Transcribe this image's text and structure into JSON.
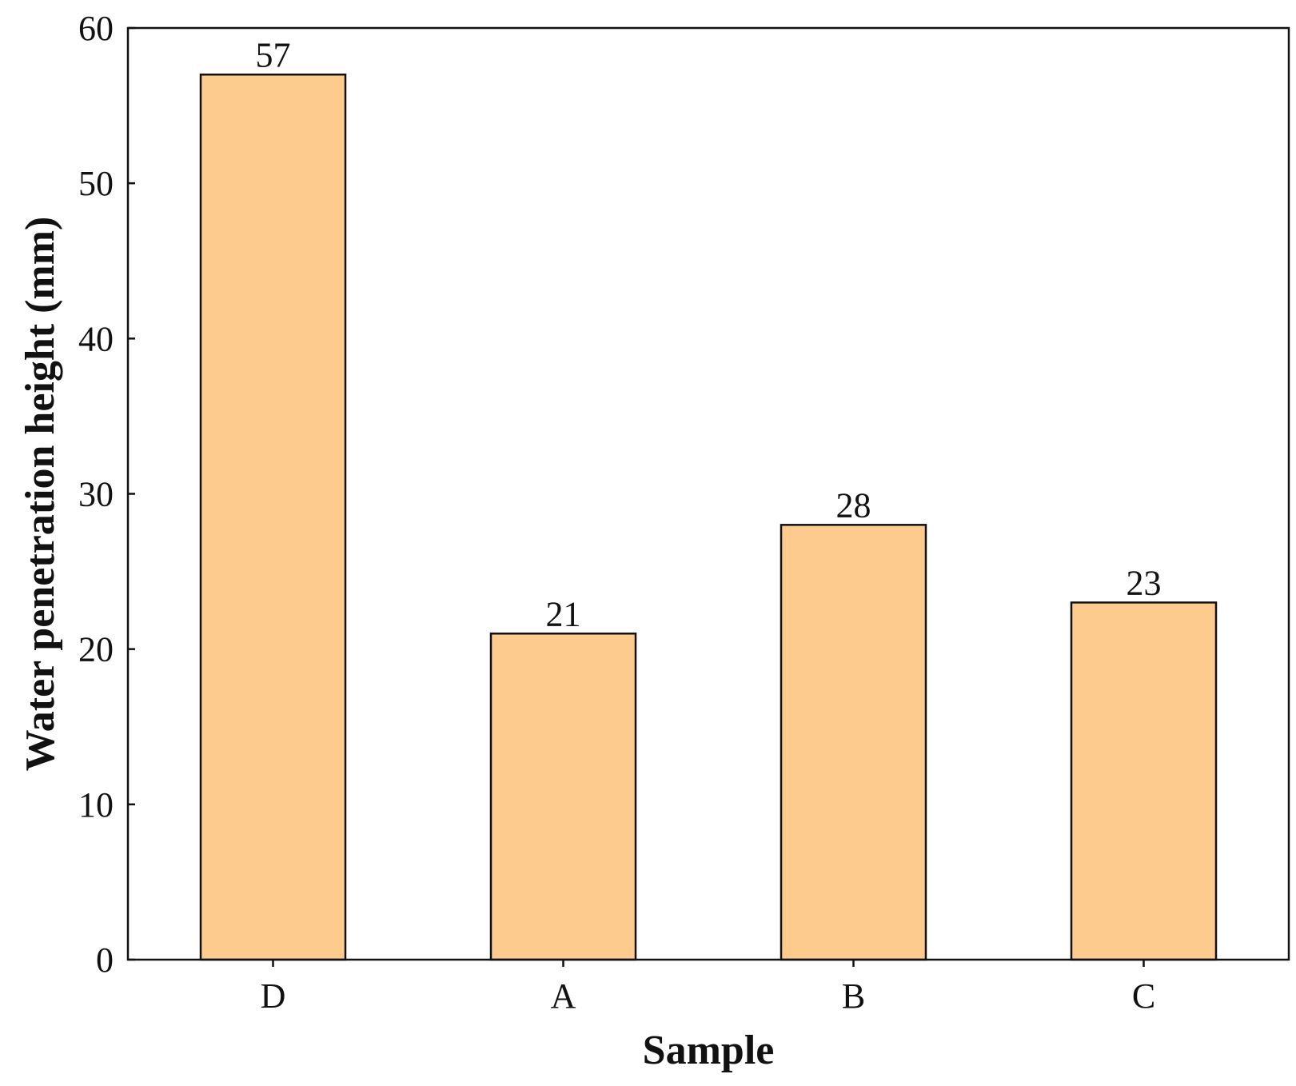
{
  "colors": {
    "bar_fill": "#FECB8F",
    "bar_stroke": "#111111",
    "axis": "#111111"
  },
  "chart_data": {
    "type": "bar",
    "title": "",
    "xlabel": "Sample",
    "ylabel": "Water penetration height (mm)",
    "categories": [
      "D",
      "A",
      "B",
      "C"
    ],
    "values": [
      57,
      21,
      28,
      23
    ],
    "data_labels": [
      "57",
      "21",
      "28",
      "23"
    ],
    "ylim": [
      0,
      60
    ],
    "yticks": [
      0,
      10,
      20,
      30,
      40,
      50,
      60
    ],
    "grid": false,
    "legend": "none"
  }
}
